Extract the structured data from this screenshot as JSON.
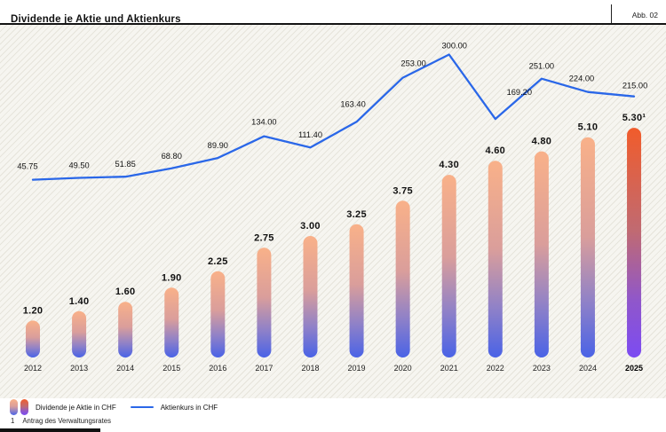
{
  "header": {
    "title": "Dividende je Aktie und Aktienkurs",
    "figure_label": "Abb. 02"
  },
  "chart_data": {
    "type": "combo-bar-line",
    "title": "Dividende je Aktie und Aktienkurs",
    "categories": [
      "2012",
      "2013",
      "2014",
      "2015",
      "2016",
      "2017",
      "2018",
      "2019",
      "2020",
      "2021",
      "2022",
      "2023",
      "2024",
      "2025"
    ],
    "series": [
      {
        "name": "Dividende je Aktie in CHF",
        "type": "bar",
        "values": [
          1.2,
          1.4,
          1.6,
          1.9,
          2.25,
          2.75,
          3.0,
          3.25,
          3.75,
          4.3,
          4.6,
          4.8,
          5.1,
          5.3
        ],
        "labels": [
          "1.20",
          "1.40",
          "1.60",
          "1.90",
          "2.25",
          "2.75",
          "3.00",
          "3.25",
          "3.75",
          "4.30",
          "4.60",
          "4.80",
          "5.10",
          "5.30¹"
        ]
      },
      {
        "name": "Aktienkurs in CHF",
        "type": "line",
        "values": [
          45.75,
          49.5,
          51.85,
          68.8,
          89.9,
          134.0,
          111.4,
          163.4,
          253.0,
          300.0,
          169.2,
          251.0,
          224.0,
          215.0
        ],
        "labels": [
          "45.75",
          "49.50",
          "51.85",
          "68.80",
          "89.90",
          "134.00",
          "111.40",
          "163.40",
          "253.00",
          "300.00",
          "169.20",
          "251.00",
          "224.00",
          "215.00"
        ]
      }
    ],
    "highlight_category": "2025",
    "grid": false,
    "legend_position": "bottom-left",
    "colors": {
      "line": "#2A67E8",
      "bar_gradient": [
        "#F9B189",
        "#DA9E9B",
        "#8F81C8",
        "#4A63E6"
      ],
      "bar_highlight_gradient": [
        "#F15C2B",
        "#C06A72",
        "#9057CA",
        "#7C4BF2"
      ],
      "label": "#111111",
      "background": "#F6F5F0"
    }
  },
  "legend": {
    "bar_label": "Dividende je Aktie in CHF",
    "line_label": "Aktienkurs in CHF"
  },
  "footnote": {
    "marker": "1",
    "text": "Antrag des Verwaltungsrates"
  }
}
